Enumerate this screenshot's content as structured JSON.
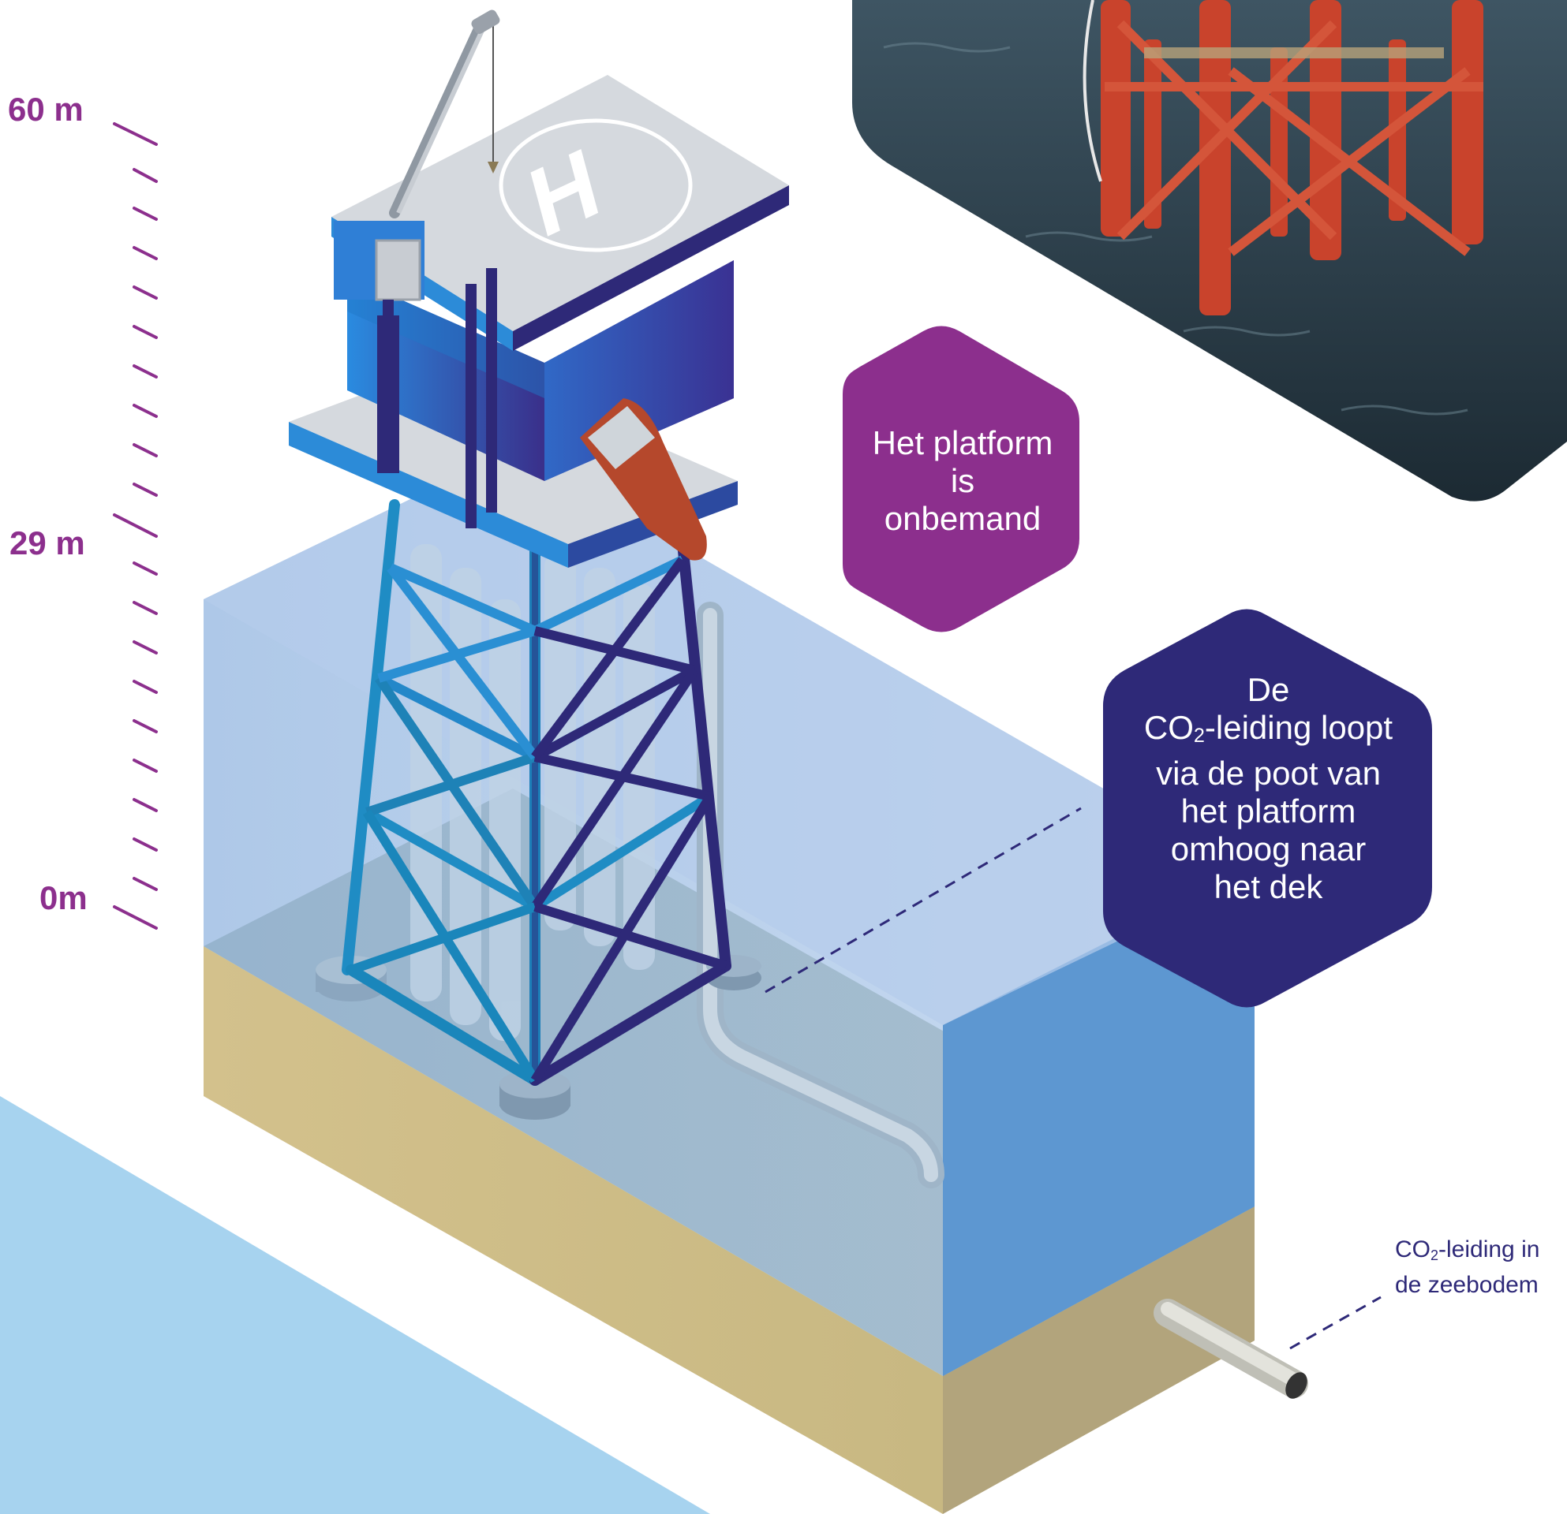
{
  "scale": {
    "top_label": "60 m",
    "mid_label": "29 m",
    "bottom_label": "0m"
  },
  "callouts": {
    "unmanned": "Het platform is onbemand",
    "pipe_leg": {
      "line1": "De",
      "co": "CO",
      "sub": "2",
      "rest1": "-leiding loopt",
      "line3": "via de poot van",
      "line4": "het platform",
      "line5": "omhoog naar",
      "line6": "het dek"
    },
    "seabed_pipe": {
      "co": "CO",
      "sub": "2",
      "rest1": "-leiding in",
      "line2": "de zeebodem"
    }
  },
  "helipad_marker": "H",
  "colors": {
    "purple": "#8c2f8d",
    "navy": "#2e2978",
    "water": "#8fb6e0",
    "sand": "#cdbe8a",
    "structure": "#2f8fd6"
  }
}
